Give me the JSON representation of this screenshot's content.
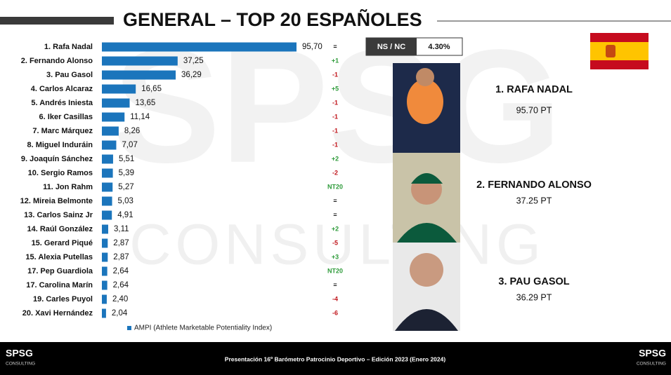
{
  "title": "GENERAL – TOP 20 ESPAÑOLES",
  "watermark": {
    "logo": "SPSG",
    "text": "CONSULTING"
  },
  "chart_data": {
    "type": "bar",
    "orientation": "horizontal",
    "color": "#1b75bc",
    "categories": [
      "1. Rafa Nadal",
      "2. Fernando Alonso",
      "3. Pau Gasol",
      "4. Carlos Alcaraz",
      "5. Andrés Iniesta",
      "6. Iker Casillas",
      "7. Marc Márquez",
      "8. Miguel Induráin",
      "9. Joaquín Sánchez",
      "10. Sergio Ramos",
      "11. Jon Rahm",
      "12. Mireia Belmonte",
      "13. Carlos Sainz Jr",
      "14. Raúl González",
      "15. Gerard Piqué",
      "15. Alexia Putellas",
      "17. Pep Guardiola",
      "17. Carolina Marín",
      "19. Carles Puyol",
      "20. Xavi Hernández"
    ],
    "values": [
      95.7,
      37.25,
      36.29,
      16.65,
      13.65,
      11.14,
      8.26,
      7.07,
      5.51,
      5.39,
      5.27,
      5.03,
      4.91,
      3.11,
      2.87,
      2.87,
      2.64,
      2.64,
      2.4,
      2.04
    ],
    "value_labels": [
      "95,70",
      "37,25",
      "36,29",
      "16,65",
      "13,65",
      "11,14",
      "8,26",
      "7,07",
      "5,51",
      "5,39",
      "5,27",
      "5,03",
      "4,91",
      "3,11",
      "2,87",
      "2,87",
      "2,64",
      "2,64",
      "2,40",
      "2,04"
    ],
    "changes": [
      "=",
      "+1",
      "-1",
      "+5",
      "-1",
      "-1",
      "-1",
      "-1",
      "+2",
      "-2",
      "NT20",
      "=",
      "=",
      "+2",
      "-5",
      "+3",
      "NT20",
      "=",
      "-4",
      "-6"
    ],
    "legend": "AMPI (Athlete Marketable Potentiality Index)"
  },
  "ns_nc": {
    "label": "NS / NC",
    "value": "4.30%"
  },
  "podium": [
    {
      "name": "1. RAFA NADAL",
      "points": "95.70 PT"
    },
    {
      "name": "2. FERNANDO ALONSO",
      "points": "37.25 PT"
    },
    {
      "name": "3. PAU GASOL",
      "points": "36.29 PT"
    }
  ],
  "footer": {
    "text": "Presentación 16º Barómetro Patrocinio Deportivo – Edición 2023 (Enero 2024)",
    "logo": "SPSG",
    "logo_sub": "CONSULTING"
  }
}
